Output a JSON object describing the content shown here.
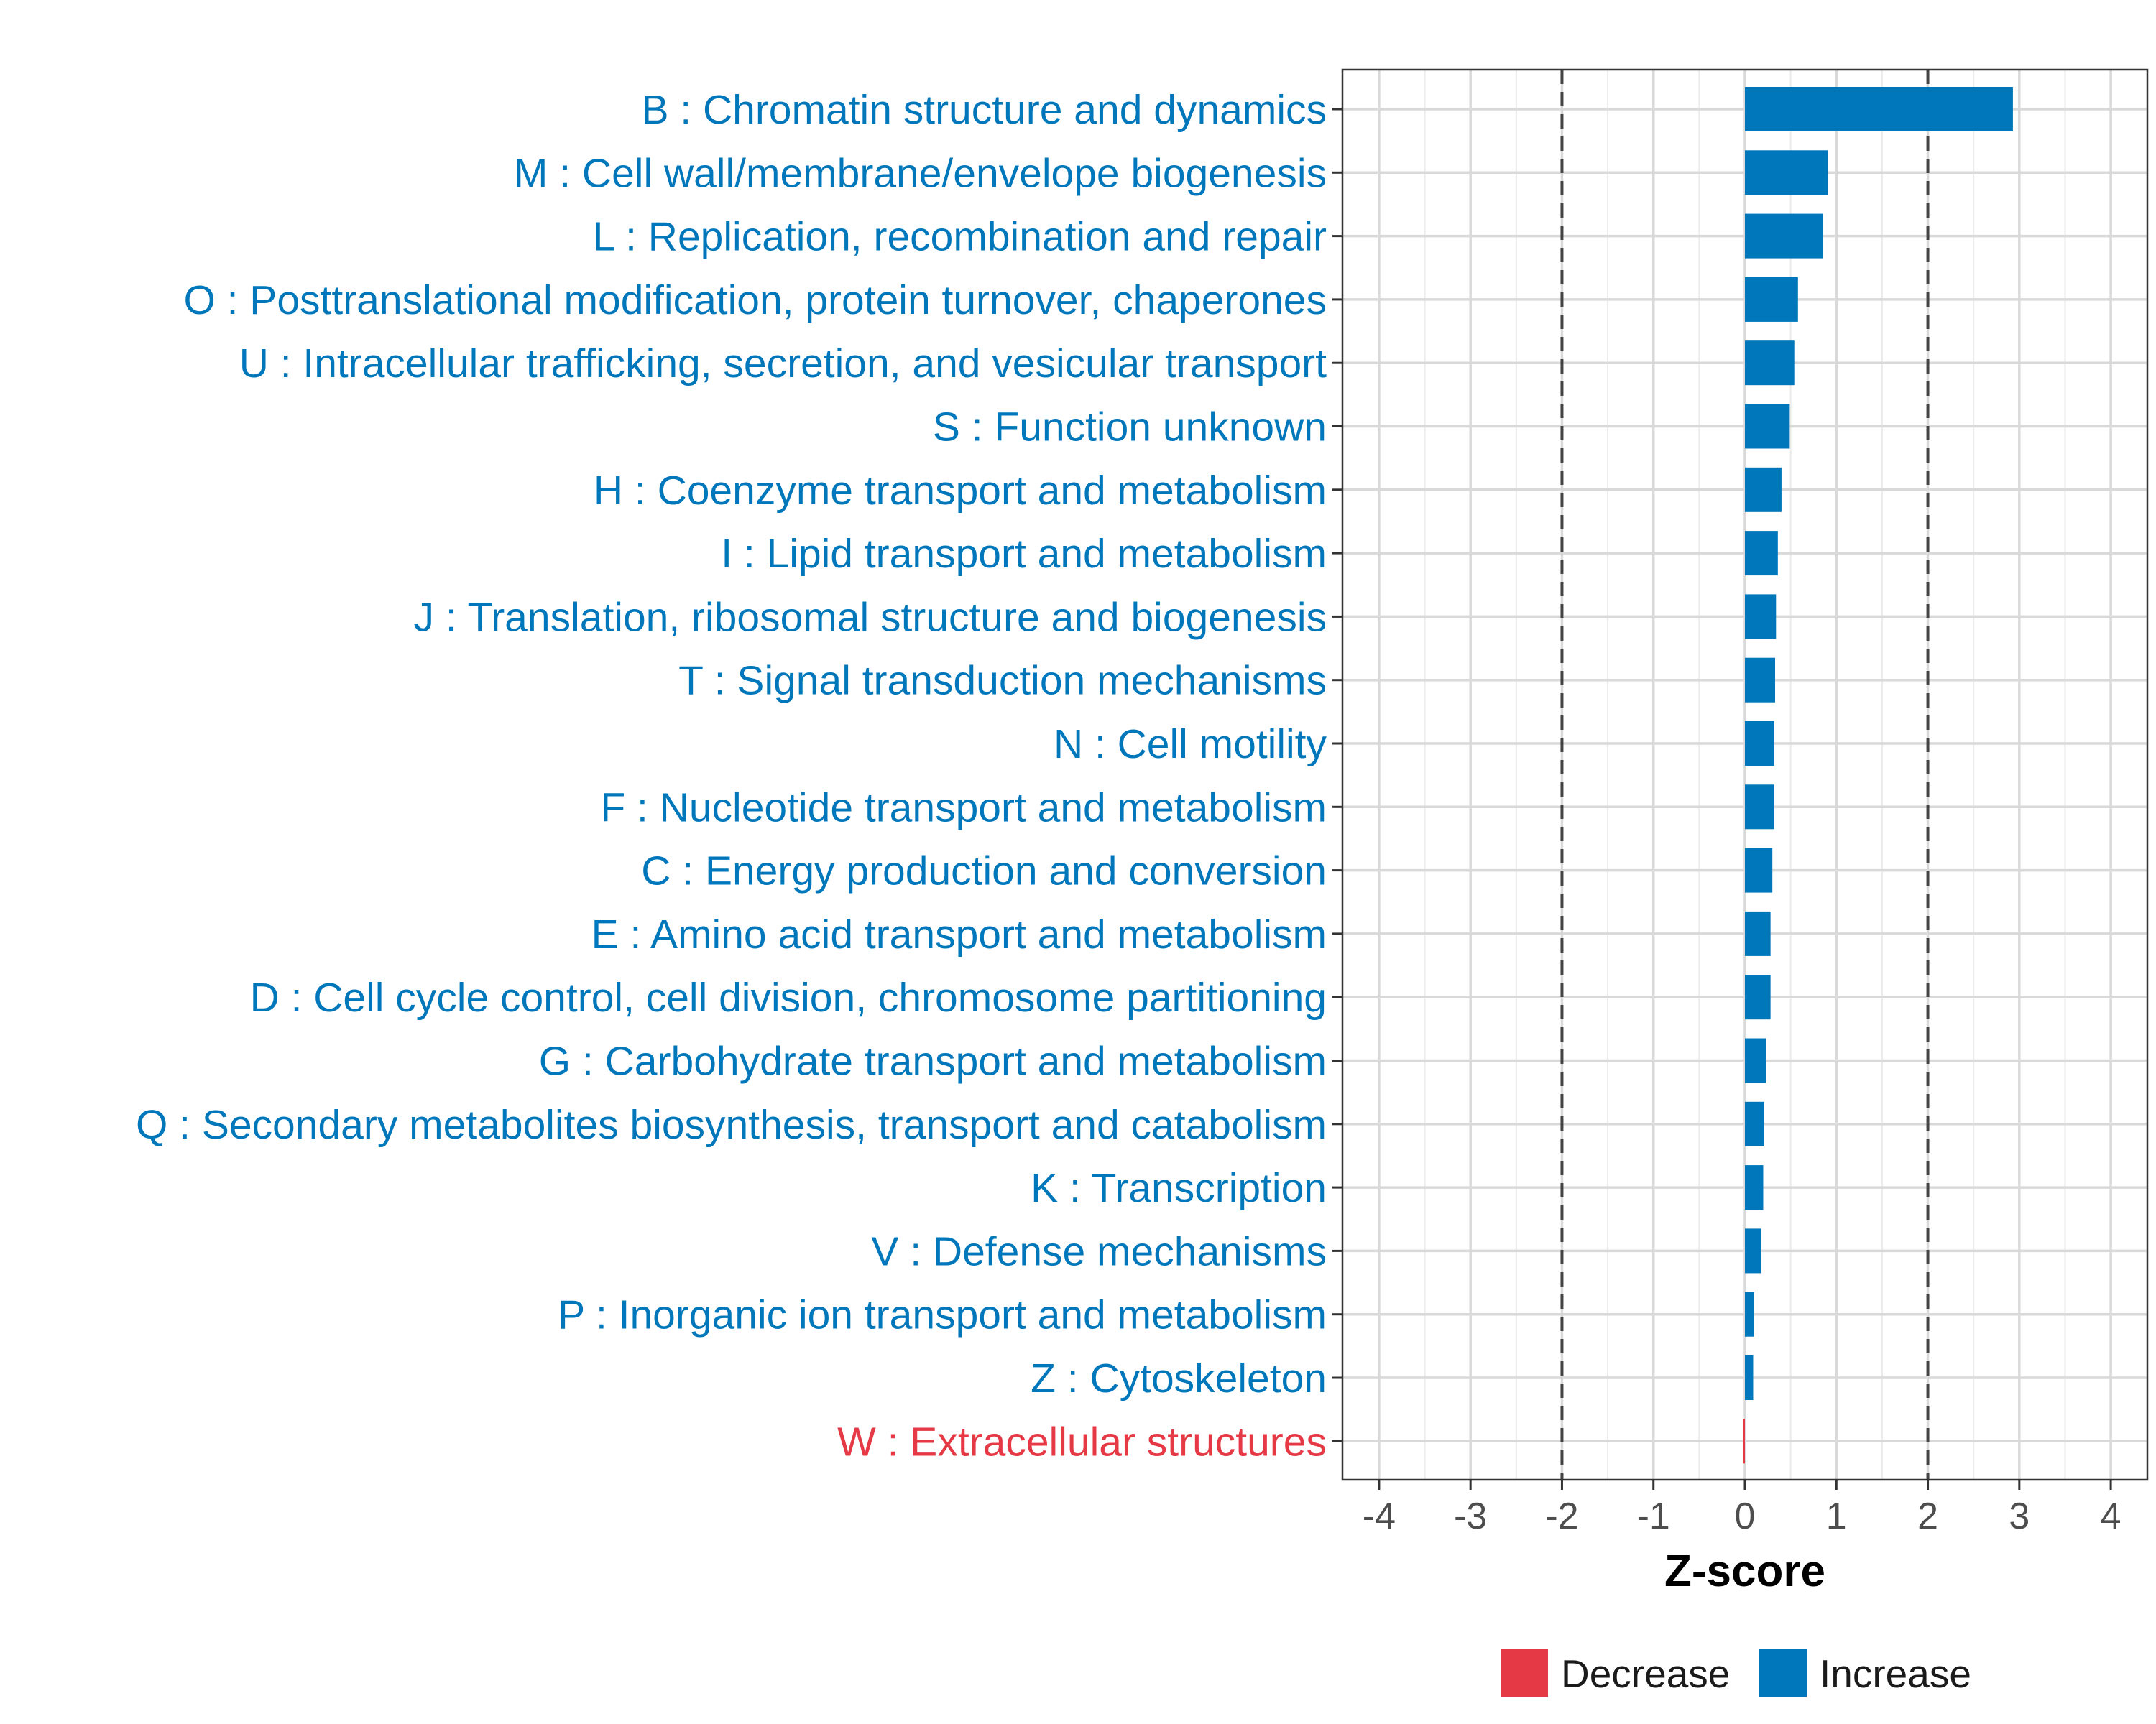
{
  "chart_data": {
    "type": "bar",
    "orientation": "horizontal",
    "title": "",
    "xlabel": "Z-score",
    "ylabel": "",
    "xlim": [
      -4.4,
      4.4
    ],
    "xticks": [
      -4,
      -3,
      -2,
      -1,
      0,
      1,
      2,
      3,
      4
    ],
    "xtick_labels": [
      "-4",
      "-3",
      "-2",
      "-1",
      "0",
      "1",
      "2",
      "3",
      "4"
    ],
    "reference_lines": [
      -2,
      2
    ],
    "grid": true,
    "legend_position": "bottom",
    "colors": {
      "Decrease": "#e63946",
      "Increase": "#0077bb"
    },
    "categories": [
      "B : Chromatin structure and dynamics",
      "M : Cell wall/membrane/envelope biogenesis",
      "L : Replication, recombination and repair",
      "O : Posttranslational modification, protein turnover, chaperones",
      "U : Intracellular trafficking, secretion, and vesicular transport",
      "S : Function unknown",
      "H : Coenzyme transport and metabolism",
      "I : Lipid transport and metabolism",
      "J : Translation, ribosomal structure and biogenesis",
      "T : Signal transduction mechanisms",
      "N : Cell motility",
      "F : Nucleotide transport and metabolism",
      "C : Energy production and conversion",
      "E : Amino acid transport and metabolism",
      "D : Cell cycle control, cell division, chromosome partitioning",
      "G : Carbohydrate transport and metabolism",
      "Q : Secondary metabolites biosynthesis, transport and catabolism",
      "K : Transcription",
      "V : Defense mechanisms",
      "P : Inorganic ion transport and metabolism",
      "Z : Cytoskeleton",
      "W : Extracellular structures"
    ],
    "values": [
      2.93,
      0.91,
      0.85,
      0.58,
      0.54,
      0.49,
      0.4,
      0.36,
      0.34,
      0.33,
      0.32,
      0.32,
      0.3,
      0.28,
      0.28,
      0.23,
      0.21,
      0.2,
      0.18,
      0.1,
      0.09,
      -0.02
    ],
    "series": [
      {
        "name": "Increase",
        "indices": [
          0,
          1,
          2,
          3,
          4,
          5,
          6,
          7,
          8,
          9,
          10,
          11,
          12,
          13,
          14,
          15,
          16,
          17,
          18,
          19,
          20
        ]
      },
      {
        "name": "Decrease",
        "indices": [
          21
        ]
      }
    ],
    "legend": [
      "Decrease",
      "Increase"
    ]
  }
}
